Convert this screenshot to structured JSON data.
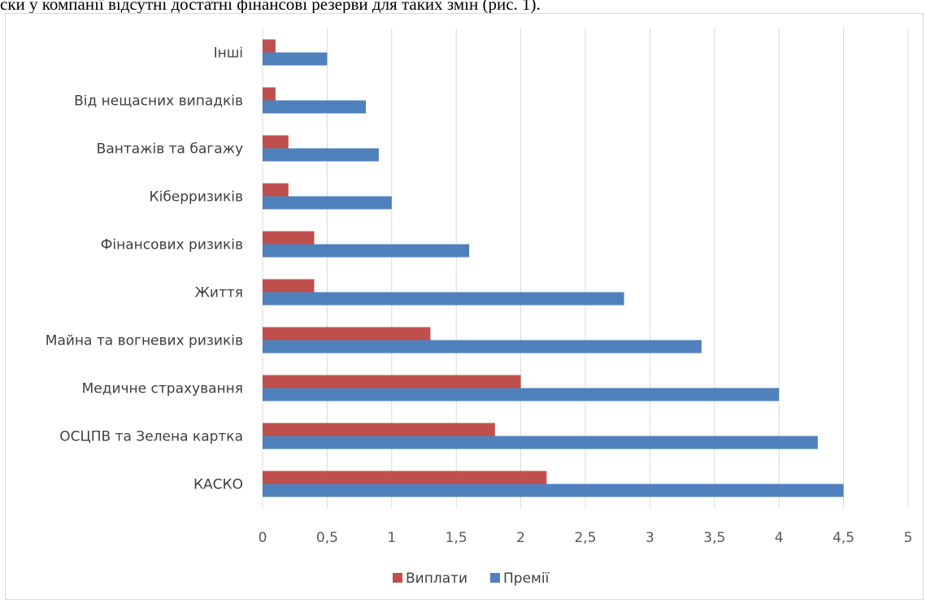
{
  "caption": "ски у компанії відсутні достатні фінансові резерви для таких змін (рис. 1).",
  "chart_data": {
    "type": "bar",
    "orientation": "horizontal",
    "categories": [
      "Інші",
      "Від нещасних випадків",
      "Вантажів та багажу",
      "Кіберризиків",
      "Фінансових ризиків",
      "Життя",
      "Майна та вогневих ризиків",
      "Медичне страхування",
      "ОСЦПВ та Зелена картка",
      "КАСКО"
    ],
    "series": [
      {
        "name": "Виплати",
        "color": "#c0504d",
        "values": [
          0.1,
          0.1,
          0.2,
          0.2,
          0.4,
          0.4,
          1.3,
          2.0,
          1.8,
          2.2
        ]
      },
      {
        "name": "Премії",
        "color": "#4f81bd",
        "values": [
          0.5,
          0.8,
          0.9,
          1.0,
          1.6,
          2.8,
          3.4,
          4.0,
          4.3,
          4.5
        ]
      }
    ],
    "xlim": [
      0,
      5
    ],
    "xticks": [
      "0",
      "0,5",
      "1",
      "1,5",
      "2",
      "2,5",
      "3",
      "3,5",
      "4",
      "4,5",
      "5"
    ],
    "grid": true,
    "legend_position": "bottom"
  }
}
